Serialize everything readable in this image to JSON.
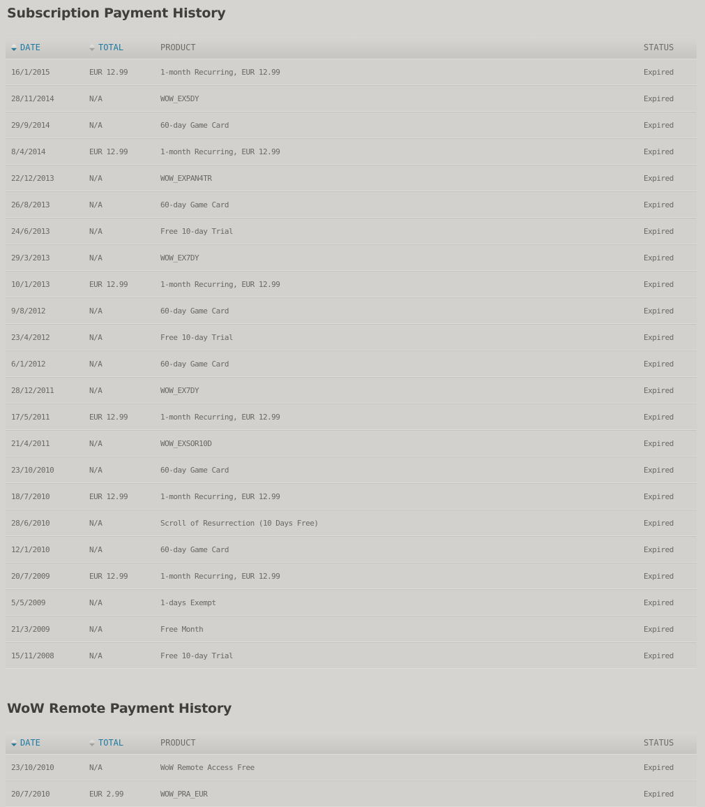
{
  "colors": {
    "page_background": "#d6d4d0",
    "accent_blue": "#1b7aa1",
    "sort_active_arrow": "#267a9b",
    "title_text": "#403f3b",
    "cell_text": "#6a6862"
  },
  "tables": [
    {
      "title": "Subscription Payment History",
      "columns": [
        {
          "label": "DATE",
          "sortable": true,
          "icon": "sort-arrows-icon",
          "sort_state": "descending"
        },
        {
          "label": "TOTAL",
          "sortable": true,
          "icon": "sort-arrows-icon",
          "sort_state": "none"
        },
        {
          "label": "PRODUCT",
          "sortable": false
        },
        {
          "label": "STATUS",
          "sortable": false
        }
      ],
      "rows": [
        {
          "date": "16/1/2015",
          "total": "EUR 12.99",
          "product": "1-month Recurring, EUR 12.99",
          "status": "Expired"
        },
        {
          "date": "28/11/2014",
          "total": "N/A",
          "product": "WOW_EX5DY",
          "status": "Expired"
        },
        {
          "date": "29/9/2014",
          "total": "N/A",
          "product": "60-day Game Card",
          "status": "Expired"
        },
        {
          "date": "8/4/2014",
          "total": "EUR 12.99",
          "product": "1-month Recurring, EUR 12.99",
          "status": "Expired"
        },
        {
          "date": "22/12/2013",
          "total": "N/A",
          "product": "WOW_EXPAN4TR",
          "status": "Expired"
        },
        {
          "date": "26/8/2013",
          "total": "N/A",
          "product": "60-day Game Card",
          "status": "Expired"
        },
        {
          "date": "24/6/2013",
          "total": "N/A",
          "product": "Free 10-day Trial",
          "status": "Expired"
        },
        {
          "date": "29/3/2013",
          "total": "N/A",
          "product": "WOW_EX7DY",
          "status": "Expired"
        },
        {
          "date": "10/1/2013",
          "total": "EUR 12.99",
          "product": "1-month Recurring, EUR 12.99",
          "status": "Expired"
        },
        {
          "date": "9/8/2012",
          "total": "N/A",
          "product": "60-day Game Card",
          "status": "Expired"
        },
        {
          "date": "23/4/2012",
          "total": "N/A",
          "product": "Free 10-day Trial",
          "status": "Expired"
        },
        {
          "date": "6/1/2012",
          "total": "N/A",
          "product": "60-day Game Card",
          "status": "Expired"
        },
        {
          "date": "28/12/2011",
          "total": "N/A",
          "product": "WOW_EX7DY",
          "status": "Expired"
        },
        {
          "date": "17/5/2011",
          "total": "EUR 12.99",
          "product": "1-month Recurring, EUR 12.99",
          "status": "Expired"
        },
        {
          "date": "21/4/2011",
          "total": "N/A",
          "product": "WOW_EXSOR10D",
          "status": "Expired"
        },
        {
          "date": "23/10/2010",
          "total": "N/A",
          "product": "60-day Game Card",
          "status": "Expired"
        },
        {
          "date": "18/7/2010",
          "total": "EUR 12.99",
          "product": "1-month Recurring, EUR 12.99",
          "status": "Expired"
        },
        {
          "date": "28/6/2010",
          "total": "N/A",
          "product": "Scroll of Resurrection (10 Days Free)",
          "status": "Expired"
        },
        {
          "date": "12/1/2010",
          "total": "N/A",
          "product": "60-day Game Card",
          "status": "Expired"
        },
        {
          "date": "20/7/2009",
          "total": "EUR 12.99",
          "product": "1-month Recurring, EUR 12.99",
          "status": "Expired"
        },
        {
          "date": "5/5/2009",
          "total": "N/A",
          "product": "1-days Exempt",
          "status": "Expired"
        },
        {
          "date": "21/3/2009",
          "total": "N/A",
          "product": "Free Month",
          "status": "Expired"
        },
        {
          "date": "15/11/2008",
          "total": "N/A",
          "product": "Free 10-day Trial",
          "status": "Expired"
        }
      ]
    },
    {
      "title": "WoW Remote Payment History",
      "columns": [
        {
          "label": "DATE",
          "sortable": true,
          "icon": "sort-arrows-icon",
          "sort_state": "descending"
        },
        {
          "label": "TOTAL",
          "sortable": true,
          "icon": "sort-arrows-icon",
          "sort_state": "none"
        },
        {
          "label": "PRODUCT",
          "sortable": false
        },
        {
          "label": "STATUS",
          "sortable": false
        }
      ],
      "rows": [
        {
          "date": "23/10/2010",
          "total": "N/A",
          "product": "WoW Remote Access Free",
          "status": "Expired"
        },
        {
          "date": "20/7/2010",
          "total": "EUR 2.99",
          "product": "WOW_PRA_EUR",
          "status": "Expired"
        }
      ]
    }
  ]
}
